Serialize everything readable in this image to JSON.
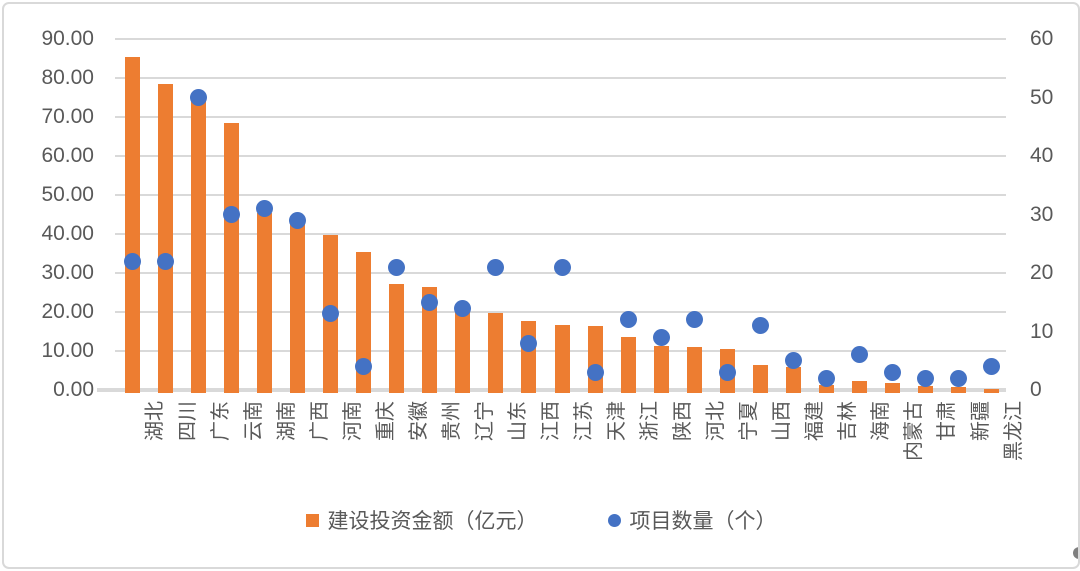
{
  "window": {
    "background": "#ffffff",
    "border_color": "#d9d9d9"
  },
  "chart_data": {
    "type": "combo",
    "categories": [
      "湖北",
      "四川",
      "广东",
      "云南",
      "湖南",
      "广西",
      "河南",
      "重庆",
      "安徽",
      "贵州",
      "辽宁",
      "山东",
      "江西",
      "江苏",
      "天津",
      "浙江",
      "陕西",
      "河北",
      "宁夏",
      "山西",
      "福建",
      "吉林",
      "海南",
      "内蒙古",
      "甘肃",
      "新疆",
      "黑龙江"
    ],
    "series": [
      {
        "name": "建设投资金额（亿元）",
        "type": "bar",
        "axis": "left",
        "color": "#ED7D31",
        "values": [
          85.3,
          78.5,
          74.0,
          68.5,
          45.5,
          42.5,
          39.8,
          35.5,
          27.2,
          26.5,
          21.0,
          19.8,
          17.6,
          16.6,
          16.5,
          13.5,
          11.3,
          11.0,
          10.5,
          6.4,
          5.9,
          1.3,
          2.3,
          1.9,
          0.9,
          0.7,
          0.3
        ]
      },
      {
        "name": "项目数量（个）",
        "type": "scatter",
        "axis": "right",
        "color": "#4472C4",
        "values": [
          22,
          22,
          50,
          30,
          31,
          29,
          13,
          4,
          21,
          15,
          14,
          21,
          8,
          21,
          3,
          12,
          9,
          12,
          3,
          11,
          5,
          2,
          6,
          3,
          2,
          2,
          4
        ]
      }
    ],
    "left_axis": {
      "min": 0,
      "max": 90,
      "step": 10,
      "tick_labels": [
        "0.00",
        "10.00",
        "20.00",
        "30.00",
        "40.00",
        "50.00",
        "60.00",
        "70.00",
        "80.00",
        "90.00"
      ]
    },
    "right_axis": {
      "min": 0,
      "max": 60,
      "step": 10,
      "tick_labels": [
        "0",
        "10",
        "20",
        "30",
        "40",
        "50",
        "60"
      ]
    },
    "grid": true,
    "legend_position": "bottom",
    "title": "",
    "xlabel": "",
    "ylabel": "",
    "colors": {
      "text": "#595959",
      "gridline": "#d9d9d9"
    }
  },
  "legend": {
    "items": [
      {
        "label": "建设投资金额（亿元）",
        "marker": "square",
        "color": "#ED7D31"
      },
      {
        "label": "项目数量（个）",
        "marker": "circle",
        "color": "#4472C4"
      }
    ]
  }
}
